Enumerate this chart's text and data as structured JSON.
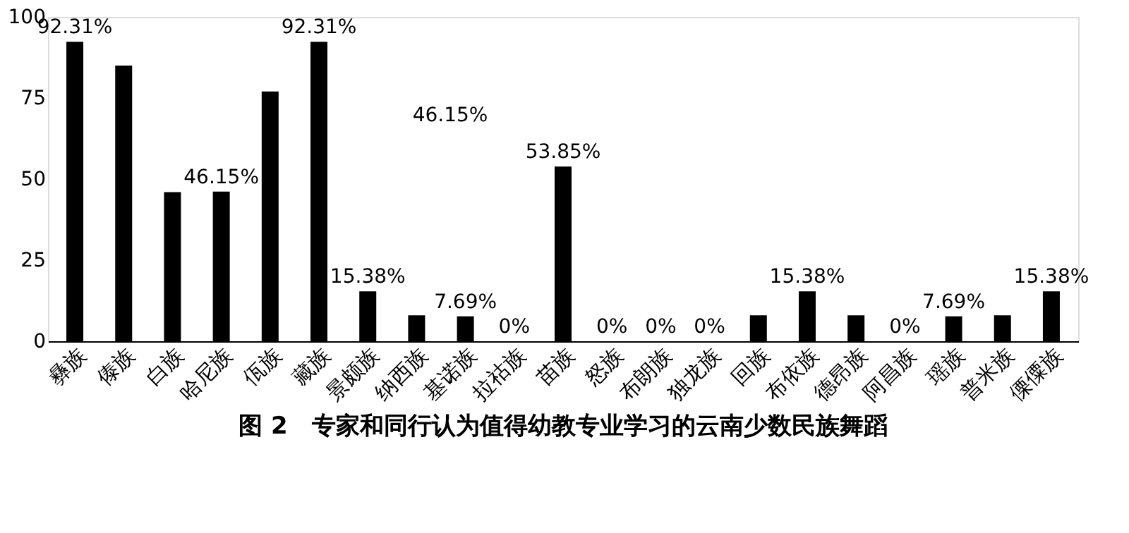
{
  "chart_data": {
    "type": "bar",
    "title": "图 2　专家和同行认为值得幼教专业学习的云南少数民族舞蹈",
    "categories": [
      "彝族",
      "傣族",
      "白族",
      "哈尼族",
      "佤族",
      "藏族",
      "景颇族",
      "纳西族",
      "基诺族",
      "拉祜族",
      "苗族",
      "怒族",
      "布朗族",
      "独龙族",
      "回族",
      "布依族",
      "德昂族",
      "阿昌族",
      "瑶族",
      "普米族",
      "傈僳族"
    ],
    "values": [
      92.31,
      85,
      46,
      46.15,
      77,
      92.31,
      15.38,
      8,
      7.69,
      0,
      53.85,
      0,
      0,
      0,
      8,
      15.38,
      8,
      0,
      7.69,
      8,
      15.38
    ],
    "value_labels": [
      "92.31%",
      null,
      null,
      "46.15%",
      null,
      "92.31%",
      "15.38%",
      null,
      "7.69%",
      "0%",
      "53.85%",
      "0%",
      "0%",
      "0%",
      null,
      "15.38%",
      null,
      "0%",
      "7.69%",
      null,
      "15.38%"
    ],
    "color": "#000000",
    "ylim": [
      0,
      100
    ],
    "yticks": [
      0,
      25,
      50,
      75,
      100
    ],
    "grid": false,
    "annotations": [
      "46.15%"
    ]
  }
}
